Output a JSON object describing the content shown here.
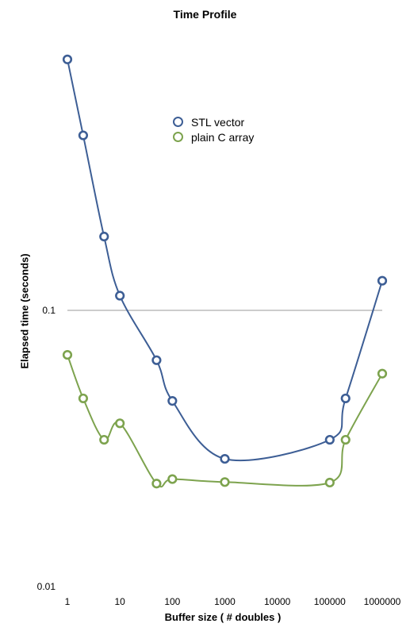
{
  "chart_data": {
    "type": "line",
    "title": "Time Profile",
    "xlabel": "Buffer size ( # doubles )",
    "ylabel": "Elapsed time (seconds)",
    "x_scale": "log",
    "y_scale": "log",
    "xlim": [
      1,
      1000000
    ],
    "ylim": [
      0.01,
      1
    ],
    "x_ticks": [
      "1",
      "10",
      "100",
      "1000",
      "10000",
      "100000",
      "1000000"
    ],
    "y_ticks": [
      "0.01",
      "0.1"
    ],
    "reference_line": 0.1,
    "legend_position": "top-center",
    "grid": false,
    "series": [
      {
        "name": "STL vector",
        "color": "#3d5e95",
        "x": [
          1,
          2,
          5,
          10,
          50,
          100,
          1000,
          100000,
          200000,
          1000000
        ],
        "y": [
          0.81,
          0.43,
          0.185,
          0.113,
          0.066,
          0.047,
          0.029,
          0.034,
          0.048,
          0.128
        ]
      },
      {
        "name": "plain C array",
        "color": "#7da34e",
        "x": [
          1,
          2,
          5,
          10,
          50,
          100,
          1000,
          100000,
          200000,
          1000000
        ],
        "y": [
          0.069,
          0.048,
          0.034,
          0.039,
          0.0236,
          0.0245,
          0.0239,
          0.0238,
          0.034,
          0.059
        ]
      }
    ]
  }
}
